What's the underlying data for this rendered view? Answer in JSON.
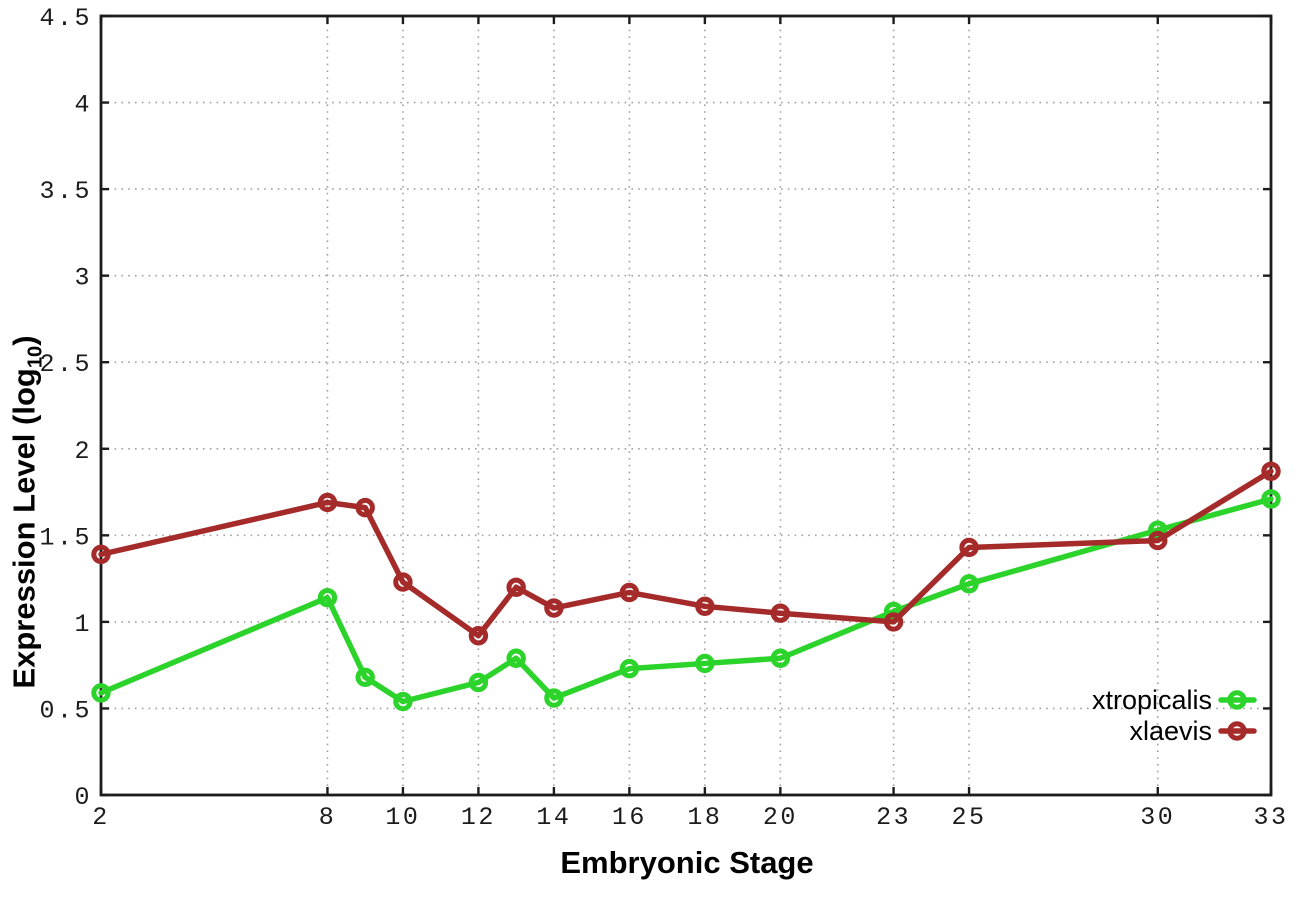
{
  "chart_data": {
    "type": "line",
    "title": "",
    "xlabel": "Embryonic Stage",
    "ylabel": "Expression Level (log10)",
    "ylabel_parts": {
      "prefix": "Expression Level (log",
      "sub": "10",
      "suffix": ")"
    },
    "x": [
      2,
      8,
      9,
      10,
      12,
      13,
      14,
      16,
      18,
      20,
      23,
      25,
      30,
      33
    ],
    "series": [
      {
        "name": "xtropicalis",
        "color": "#2bd32b",
        "values": [
          0.59,
          1.14,
          0.68,
          0.54,
          0.65,
          0.79,
          0.56,
          0.73,
          0.76,
          0.79,
          1.06,
          1.22,
          1.53,
          1.71
        ]
      },
      {
        "name": "xlaevis",
        "color": "#a52a2a",
        "values": [
          1.39,
          1.69,
          1.66,
          1.23,
          0.92,
          1.2,
          1.08,
          1.17,
          1.09,
          1.05,
          1.0,
          1.43,
          1.47,
          1.87
        ]
      }
    ],
    "xticks": [
      2,
      8,
      10,
      12,
      14,
      16,
      18,
      20,
      23,
      25,
      30,
      33
    ],
    "yticks": [
      0,
      0.5,
      1,
      1.5,
      2,
      2.5,
      3,
      3.5,
      4,
      4.5
    ],
    "xlim": [
      2,
      33
    ],
    "ylim": [
      0,
      4.5
    ],
    "grid": true,
    "grid_style": "dotted",
    "marker": "open-circle",
    "legend_position": "inside-bottom-right",
    "colors": {
      "axis": "#1c1c1c",
      "grid": "#a0a0a0",
      "background": "#ffffff"
    }
  }
}
